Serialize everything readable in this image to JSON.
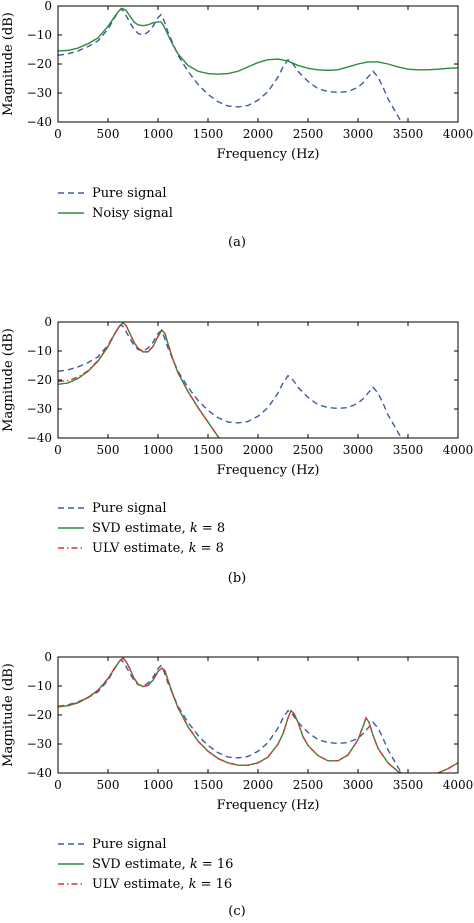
{
  "chart_data": [
    {
      "type": "line",
      "caption": "(a)",
      "xlabel": "Frequency (Hz)",
      "ylabel": "Magnitude (dB)",
      "xlim": [
        0,
        4000
      ],
      "ylim": [
        -40,
        0
      ],
      "xticks": [
        0,
        500,
        1000,
        1500,
        2000,
        2500,
        3000,
        3500,
        4000
      ],
      "yticks": [
        0,
        -10,
        -20,
        -30,
        -40
      ],
      "legend_placement": "below",
      "series": [
        {
          "name": "Pure signal",
          "style": "dashed",
          "color": "#3a5ba8",
          "x": [
            0,
            100,
            200,
            300,
            400,
            500,
            550,
            600,
            630,
            660,
            700,
            750,
            800,
            850,
            900,
            950,
            1000,
            1030,
            1060,
            1100,
            1150,
            1200,
            1300,
            1400,
            1500,
            1600,
            1700,
            1800,
            1900,
            2000,
            2100,
            2200,
            2250,
            2300,
            2350,
            2400,
            2500,
            2600,
            2700,
            2800,
            2900,
            3000,
            3050,
            3100,
            3150,
            3200,
            3250,
            3300,
            3350,
            3400,
            3450
          ],
          "y": [
            -17,
            -16.5,
            -15.5,
            -14,
            -12,
            -8,
            -5,
            -2,
            -1,
            -2,
            -4.5,
            -7.5,
            -9.5,
            -10,
            -9,
            -7,
            -4,
            -3,
            -5,
            -9,
            -13,
            -17,
            -22.5,
            -27,
            -30.5,
            -33,
            -34.5,
            -34.8,
            -34.3,
            -32.5,
            -29.5,
            -24.5,
            -21,
            -18.5,
            -20,
            -22.5,
            -26,
            -28.5,
            -29.5,
            -29.8,
            -29.5,
            -28,
            -26.5,
            -24.5,
            -22.5,
            -24.5,
            -28,
            -32,
            -35,
            -38,
            -41
          ]
        },
        {
          "name": "Noisy signal",
          "style": "solid",
          "color": "#2e8b3a",
          "x": [
            0,
            100,
            200,
            300,
            400,
            500,
            550,
            600,
            640,
            680,
            720,
            760,
            800,
            850,
            900,
            950,
            1000,
            1030,
            1060,
            1100,
            1150,
            1200,
            1300,
            1400,
            1500,
            1600,
            1700,
            1800,
            1900,
            2000,
            2100,
            2200,
            2300,
            2400,
            2500,
            2600,
            2700,
            2800,
            2900,
            3000,
            3100,
            3200,
            3300,
            3400,
            3500,
            3600,
            3700,
            3800,
            3900,
            4000
          ],
          "y": [
            -15.5,
            -15.3,
            -14.5,
            -13,
            -11,
            -7,
            -4.5,
            -2,
            -0.8,
            -1.5,
            -3.5,
            -5.5,
            -6.5,
            -6.8,
            -6.5,
            -5.8,
            -5.5,
            -5.5,
            -7,
            -10,
            -13.5,
            -16.5,
            -20.5,
            -22.5,
            -23.3,
            -23.5,
            -23.3,
            -22.5,
            -21,
            -19.5,
            -18.5,
            -18.3,
            -19,
            -20.5,
            -21.5,
            -22,
            -22.2,
            -22,
            -21,
            -20,
            -19.3,
            -19.3,
            -20,
            -21,
            -21.8,
            -22,
            -22,
            -21.8,
            -21.5,
            -21.3
          ]
        }
      ]
    },
    {
      "type": "line",
      "caption": "(b)",
      "xlabel": "Frequency (Hz)",
      "ylabel": "Magnitude (dB)",
      "xlim": [
        0,
        4000
      ],
      "ylim": [
        -40,
        0
      ],
      "xticks": [
        0,
        500,
        1000,
        1500,
        2000,
        2500,
        3000,
        3500,
        4000
      ],
      "yticks": [
        0,
        -10,
        -20,
        -30,
        -40
      ],
      "legend_placement": "below",
      "series": [
        {
          "name": "Pure signal",
          "style": "dashed",
          "color": "#3a5ba8",
          "x": [
            0,
            100,
            200,
            300,
            400,
            500,
            550,
            600,
            630,
            660,
            700,
            750,
            800,
            850,
            900,
            950,
            1000,
            1030,
            1060,
            1100,
            1150,
            1200,
            1300,
            1400,
            1500,
            1600,
            1700,
            1800,
            1900,
            2000,
            2100,
            2200,
            2250,
            2300,
            2350,
            2400,
            2500,
            2600,
            2700,
            2800,
            2900,
            3000,
            3050,
            3100,
            3150,
            3200,
            3250,
            3300,
            3350,
            3400,
            3450
          ],
          "y": [
            -17,
            -16.5,
            -15.5,
            -14,
            -12,
            -8,
            -5,
            -2,
            -1,
            -2,
            -4.5,
            -7.5,
            -9.5,
            -10,
            -9,
            -7,
            -4,
            -3,
            -5,
            -9,
            -13,
            -17,
            -22.5,
            -27,
            -30.5,
            -33,
            -34.5,
            -34.8,
            -34.3,
            -32.5,
            -29.5,
            -24.5,
            -21,
            -18.5,
            -20,
            -22.5,
            -26,
            -28.5,
            -29.5,
            -29.8,
            -29.5,
            -28,
            -26.5,
            -24.5,
            -22.5,
            -24.5,
            -28,
            -32,
            -35,
            -38,
            -41
          ]
        },
        {
          "name": "SVD estimate, k = 8",
          "label_prefix": "SVD estimate, ",
          "label_var": "k",
          "label_suffix": " = 8",
          "style": "solid",
          "color": "#2e8b3a",
          "x": [
            0,
            100,
            200,
            300,
            400,
            500,
            560,
            620,
            650,
            680,
            720,
            760,
            800,
            850,
            900,
            950,
            1000,
            1040,
            1070,
            1100,
            1150,
            1200,
            1300,
            1400,
            1500,
            1550,
            1600,
            1650
          ],
          "y": [
            -21.5,
            -21,
            -19.5,
            -17,
            -13.5,
            -8.5,
            -4.5,
            -1.2,
            -0.3,
            -1.2,
            -4,
            -7,
            -9,
            -10.3,
            -10.3,
            -8.5,
            -5,
            -2.8,
            -4,
            -7.5,
            -13,
            -17.5,
            -24,
            -29.5,
            -34.5,
            -37,
            -39.5,
            -42
          ]
        },
        {
          "name": "ULV estimate, k = 8",
          "label_prefix": "ULV estimate, ",
          "label_var": "k",
          "label_suffix": " = 8",
          "style": "dashdot",
          "color": "#e0322e",
          "x": [
            0,
            100,
            200,
            300,
            400,
            500,
            560,
            620,
            650,
            680,
            720,
            760,
            800,
            850,
            900,
            950,
            1000,
            1040,
            1070,
            1100,
            1150,
            1200,
            1300,
            1400,
            1500,
            1550,
            1600,
            1650
          ],
          "y": [
            -20.5,
            -20.2,
            -19,
            -16.8,
            -13.3,
            -8.3,
            -4.4,
            -1.2,
            -0.3,
            -1.2,
            -4,
            -7,
            -9,
            -10.2,
            -10.2,
            -8.4,
            -5,
            -2.8,
            -4,
            -7.5,
            -13,
            -17.5,
            -24,
            -29.5,
            -34.5,
            -37,
            -39.5,
            -42
          ]
        }
      ]
    },
    {
      "type": "line",
      "caption": "(c)",
      "xlabel": "Frequency (Hz)",
      "ylabel": "Magnitude (dB)",
      "xlim": [
        0,
        4000
      ],
      "ylim": [
        -40,
        0
      ],
      "xticks": [
        0,
        500,
        1000,
        1500,
        2000,
        2500,
        3000,
        3500,
        4000
      ],
      "yticks": [
        0,
        -10,
        -20,
        -30,
        -40
      ],
      "legend_placement": "below",
      "series": [
        {
          "name": "Pure signal",
          "style": "dashed",
          "color": "#3a5ba8",
          "x": [
            0,
            100,
            200,
            300,
            400,
            500,
            550,
            600,
            630,
            660,
            700,
            750,
            800,
            850,
            900,
            950,
            1000,
            1030,
            1060,
            1100,
            1150,
            1200,
            1300,
            1400,
            1500,
            1600,
            1700,
            1800,
            1900,
            2000,
            2100,
            2200,
            2250,
            2300,
            2350,
            2400,
            2500,
            2600,
            2700,
            2800,
            2900,
            3000,
            3050,
            3100,
            3150,
            3200,
            3250,
            3300,
            3350,
            3400,
            3450
          ],
          "y": [
            -17,
            -16.5,
            -15.5,
            -14,
            -12,
            -8,
            -5,
            -2,
            -1,
            -2,
            -4.5,
            -7.5,
            -9.5,
            -10,
            -9,
            -7,
            -4,
            -3,
            -5,
            -9,
            -13,
            -17,
            -22.5,
            -27,
            -30.5,
            -33,
            -34.5,
            -34.8,
            -34.3,
            -32.5,
            -29.5,
            -24.5,
            -21,
            -18.5,
            -20,
            -22.5,
            -26,
            -28.5,
            -29.5,
            -29.8,
            -29.5,
            -28,
            -26.5,
            -24.5,
            -22.5,
            -24.5,
            -28,
            -32,
            -35,
            -38,
            -41
          ]
        },
        {
          "name": "SVD estimate, k = 16",
          "label_prefix": "SVD estimate, ",
          "label_var": "k",
          "label_suffix": " = 16",
          "style": "solid",
          "color": "#2e8b3a",
          "x": [
            0,
            100,
            200,
            300,
            400,
            500,
            560,
            620,
            650,
            680,
            720,
            760,
            800,
            850,
            900,
            950,
            1000,
            1040,
            1070,
            1100,
            1150,
            1200,
            1300,
            1400,
            1500,
            1600,
            1700,
            1800,
            1900,
            2000,
            2100,
            2200,
            2250,
            2300,
            2330,
            2360,
            2400,
            2450,
            2500,
            2600,
            2700,
            2800,
            2900,
            3000,
            3050,
            3080,
            3110,
            3150,
            3200,
            3300,
            3400,
            3500,
            3600,
            3700,
            3800,
            3900,
            4000
          ],
          "y": [
            -17.2,
            -16.8,
            -15.8,
            -14,
            -11.5,
            -7.5,
            -4.2,
            -1.2,
            -0.4,
            -1.5,
            -4.2,
            -7.3,
            -9.3,
            -10.2,
            -9.8,
            -8,
            -5,
            -3.8,
            -4.8,
            -8,
            -13,
            -17.5,
            -24,
            -29,
            -32.5,
            -35,
            -36.5,
            -37.3,
            -37.3,
            -36.5,
            -34.5,
            -30,
            -26.5,
            -21,
            -18.5,
            -19.5,
            -22.5,
            -27.5,
            -30.5,
            -34,
            -35.8,
            -35.8,
            -33.8,
            -28.5,
            -24,
            -21,
            -22.5,
            -27,
            -31.5,
            -36.5,
            -39.5,
            -41,
            -42,
            -42,
            -40,
            -38.5,
            -36.5
          ]
        },
        {
          "name": "ULV estimate, k = 16",
          "label_prefix": "ULV estimate, ",
          "label_var": "k",
          "label_suffix": " = 16",
          "style": "dashdot",
          "color": "#e0322e",
          "x": [
            0,
            100,
            200,
            300,
            400,
            500,
            560,
            620,
            650,
            680,
            720,
            760,
            800,
            850,
            900,
            950,
            1000,
            1040,
            1070,
            1100,
            1150,
            1200,
            1300,
            1400,
            1500,
            1600,
            1700,
            1800,
            1900,
            2000,
            2100,
            2200,
            2250,
            2300,
            2330,
            2360,
            2400,
            2450,
            2500,
            2600,
            2700,
            2800,
            2900,
            3000,
            3050,
            3080,
            3110,
            3150,
            3200,
            3300,
            3400,
            3500,
            3600,
            3700,
            3800,
            3900,
            4000
          ],
          "y": [
            -17,
            -16.7,
            -15.7,
            -13.9,
            -11.4,
            -7.4,
            -4.2,
            -1.2,
            -0.4,
            -1.5,
            -4.2,
            -7.3,
            -9.3,
            -10.2,
            -9.8,
            -8,
            -5,
            -3.8,
            -4.8,
            -8,
            -13,
            -17.5,
            -24,
            -29,
            -32.5,
            -35,
            -36.5,
            -37.3,
            -37.3,
            -36.5,
            -34.5,
            -30,
            -26.5,
            -21,
            -18.5,
            -19.5,
            -22.5,
            -27.5,
            -30.5,
            -34,
            -35.8,
            -35.8,
            -33.8,
            -28.5,
            -24,
            -21,
            -22.5,
            -27,
            -31.5,
            -36.5,
            -39.5,
            -41,
            -42,
            -42,
            -40,
            -38.5,
            -36.5
          ]
        }
      ]
    }
  ]
}
